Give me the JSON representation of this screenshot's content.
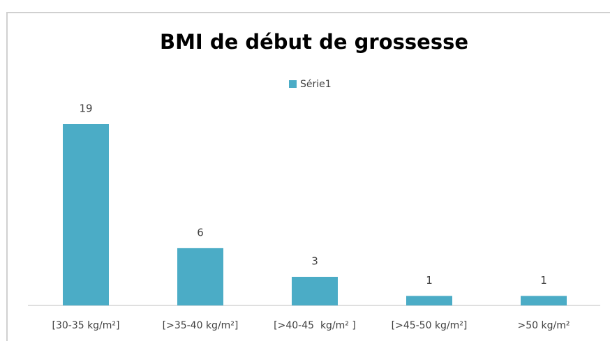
{
  "chart_data": {
    "type": "bar",
    "title": "BMI de début de grossesse",
    "categories": [
      "[30-35 kg/m²]",
      "[>35-40 kg/m²]",
      "[>40-45  kg/m² ]",
      "[>45-50 kg/m²]",
      ">50 kg/m²"
    ],
    "series": [
      {
        "name": "Série1",
        "color": "#4bacc6",
        "values": [
          19,
          6,
          3,
          1,
          1
        ]
      }
    ],
    "legend": "top",
    "grid": false
  }
}
